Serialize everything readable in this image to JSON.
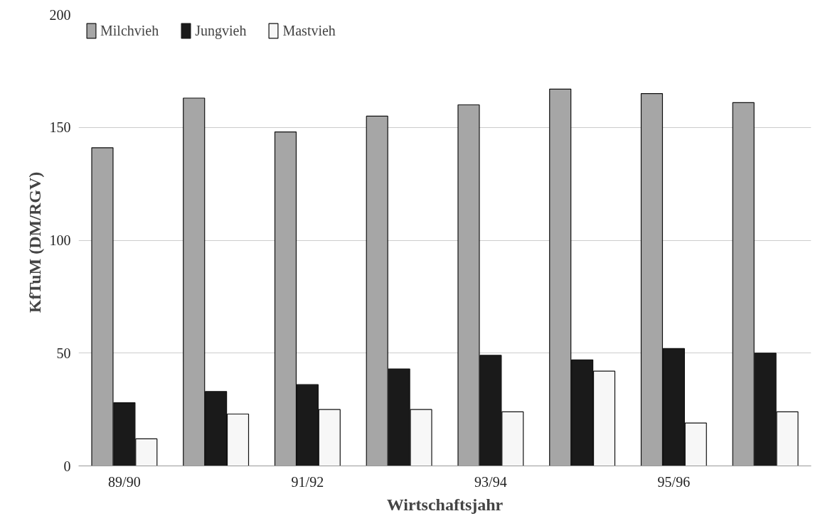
{
  "chart_data": {
    "type": "bar",
    "xlabel": "Wirtschaftsjahr",
    "ylabel": "KfTuM  (DM/RGV)",
    "categories": [
      "89/90",
      null,
      "91/92",
      null,
      "93/94",
      null,
      "95/96",
      null
    ],
    "series": [
      {
        "name": "Milchvieh",
        "color": "#a6a6a6",
        "values": [
          141,
          163,
          148,
          155,
          160,
          167,
          165,
          161
        ]
      },
      {
        "name": "Jungvieh",
        "color": "#1a1a1a",
        "values": [
          28,
          33,
          36,
          43,
          49,
          47,
          52,
          50
        ]
      },
      {
        "name": "Mastvieh",
        "color": "#f7f7f7",
        "values": [
          12,
          23,
          25,
          25,
          24,
          42,
          19,
          24
        ]
      }
    ],
    "ylim": [
      0,
      200
    ],
    "yticks": [
      0,
      50,
      100,
      150,
      200
    ],
    "grid": "y",
    "legend": "top left"
  }
}
